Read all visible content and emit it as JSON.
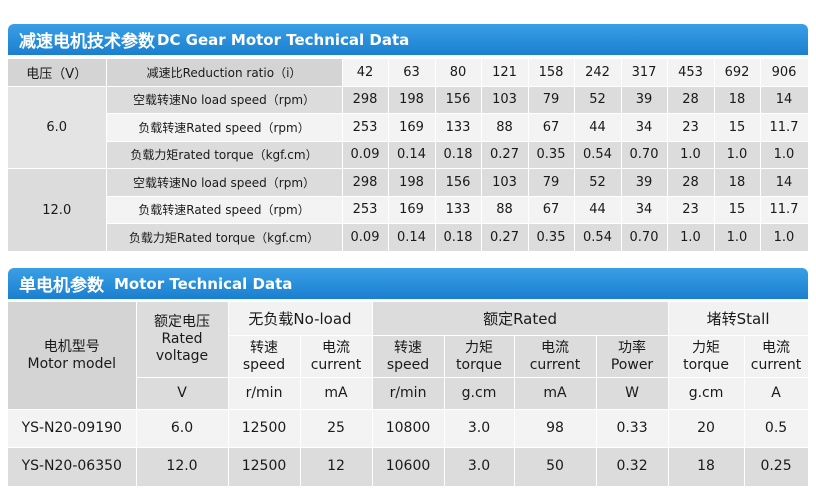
{
  "gear_section": {
    "title_cn": "减速电机技术参数",
    "title_en": "DC Gear Motor Technical Data",
    "voltage_header": "电压（V）",
    "ratio_header": "减速比Reduction ratio（i）",
    "ratios": [
      "42",
      "63",
      "80",
      "121",
      "158",
      "242",
      "317",
      "453",
      "692",
      "906"
    ],
    "groups": [
      {
        "voltage": "6.0",
        "rows": [
          {
            "label": "空载转速No load speed（rpm）",
            "values": [
              "298",
              "198",
              "156",
              "103",
              "79",
              "52",
              "39",
              "28",
              "18",
              "14"
            ]
          },
          {
            "label": "负载转速Rated speed（rpm）",
            "values": [
              "253",
              "169",
              "133",
              "88",
              "67",
              "44",
              "34",
              "23",
              "15",
              "11.7"
            ]
          },
          {
            "label": "负载力矩rated torque（kgf.cm）",
            "values": [
              "0.09",
              "0.14",
              "0.18",
              "0.27",
              "0.35",
              "0.54",
              "0.70",
              "1.0",
              "1.0",
              "1.0"
            ]
          }
        ]
      },
      {
        "voltage": "12.0",
        "rows": [
          {
            "label": "空载转速No load speed（rpm）",
            "values": [
              "298",
              "198",
              "156",
              "103",
              "79",
              "52",
              "39",
              "28",
              "18",
              "14"
            ]
          },
          {
            "label": "负载转速Rated speed（rpm）",
            "values": [
              "253",
              "169",
              "133",
              "88",
              "67",
              "44",
              "34",
              "23",
              "15",
              "11.7"
            ]
          },
          {
            "label": "负载力矩Rated torque（kgf.cm）",
            "values": [
              "0.09",
              "0.14",
              "0.18",
              "0.27",
              "0.35",
              "0.54",
              "0.70",
              "1.0",
              "1.0",
              "1.0"
            ]
          }
        ]
      }
    ]
  },
  "motor_section": {
    "title_cn": "单电机参数",
    "title_en": "Motor Technical Data",
    "model_header_cn": "电机型号",
    "model_header_en": "Motor model",
    "voltage_header_cn": "额定电压",
    "voltage_header_en1": "Rated",
    "voltage_header_en2": "voltage",
    "noload_group": "无负载No-load",
    "rated_group": "额定Rated",
    "stall_group": "堵转Stall",
    "sub_headers": [
      {
        "cn": "转速",
        "en": "speed"
      },
      {
        "cn": "电流",
        "en": "current"
      },
      {
        "cn": "转速",
        "en": "speed"
      },
      {
        "cn": "力矩",
        "en": "torque"
      },
      {
        "cn": "电流",
        "en": "current"
      },
      {
        "cn": "功率",
        "en": "Power"
      },
      {
        "cn": "力矩",
        "en": "torque"
      },
      {
        "cn": "电流",
        "en": "current"
      }
    ],
    "units": [
      "V",
      "r/min",
      "mA",
      "r/min",
      "g.cm",
      "mA",
      "W",
      "g.cm",
      "A"
    ],
    "rows": [
      {
        "model": "YS-N20-09190",
        "values": [
          "6.0",
          "12500",
          "25",
          "10800",
          "3.0",
          "98",
          "0.33",
          "20",
          "0.5"
        ]
      },
      {
        "model": "YS-N20-06350",
        "values": [
          "12.0",
          "12500",
          "12",
          "10600",
          "3.0",
          "50",
          "0.32",
          "18",
          "0.25"
        ]
      }
    ]
  },
  "colors": {
    "banner_top": "#3b9fe6",
    "banner_bottom": "#1a7fcf",
    "cell_dark": "#dcdcdc",
    "cell_light": "#f3f3f3"
  }
}
